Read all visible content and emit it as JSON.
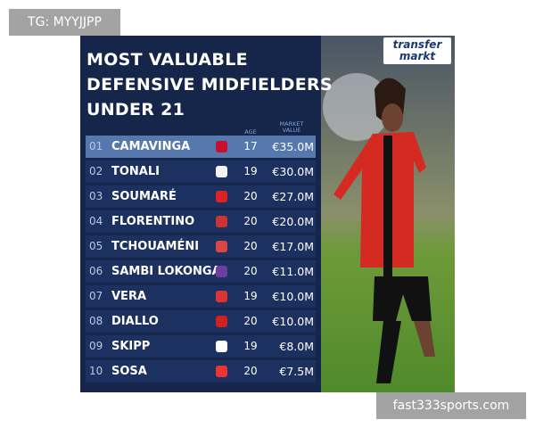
{
  "watermark": "TG: MYYJJPP",
  "logo": [
    "transfer",
    "markt"
  ],
  "title": [
    "MOST VALUABLE",
    "DEFENSIVE MIDFIELDERS",
    "UNDER 21"
  ],
  "headers": {
    "age": "AGE",
    "market_value": "MARKET VALUE"
  },
  "table": {
    "rows": [
      [
        "01",
        "CAMAVINGA",
        17,
        "€35.0M"
      ],
      [
        "02",
        "TONALI",
        19,
        "€30.0M"
      ],
      [
        "03",
        "SOUMARÉ",
        20,
        "€27.0M"
      ],
      [
        "04",
        "FLORENTINO",
        20,
        "€20.0M"
      ],
      [
        "05",
        "TCHOUAMÉNI",
        20,
        "€17.0M"
      ],
      [
        "06",
        "SAMBI LOKONGA",
        20,
        "€11.0M"
      ],
      [
        "07",
        "VERA",
        19,
        "€10.0M"
      ],
      [
        "08",
        "DIALLO",
        20,
        "€10.0M"
      ],
      [
        "09",
        "SKIPP",
        19,
        "€8.0M"
      ],
      [
        "10",
        "SOSA",
        20,
        "€7.5M"
      ]
    ]
  },
  "footer": "fast333sports.com"
}
